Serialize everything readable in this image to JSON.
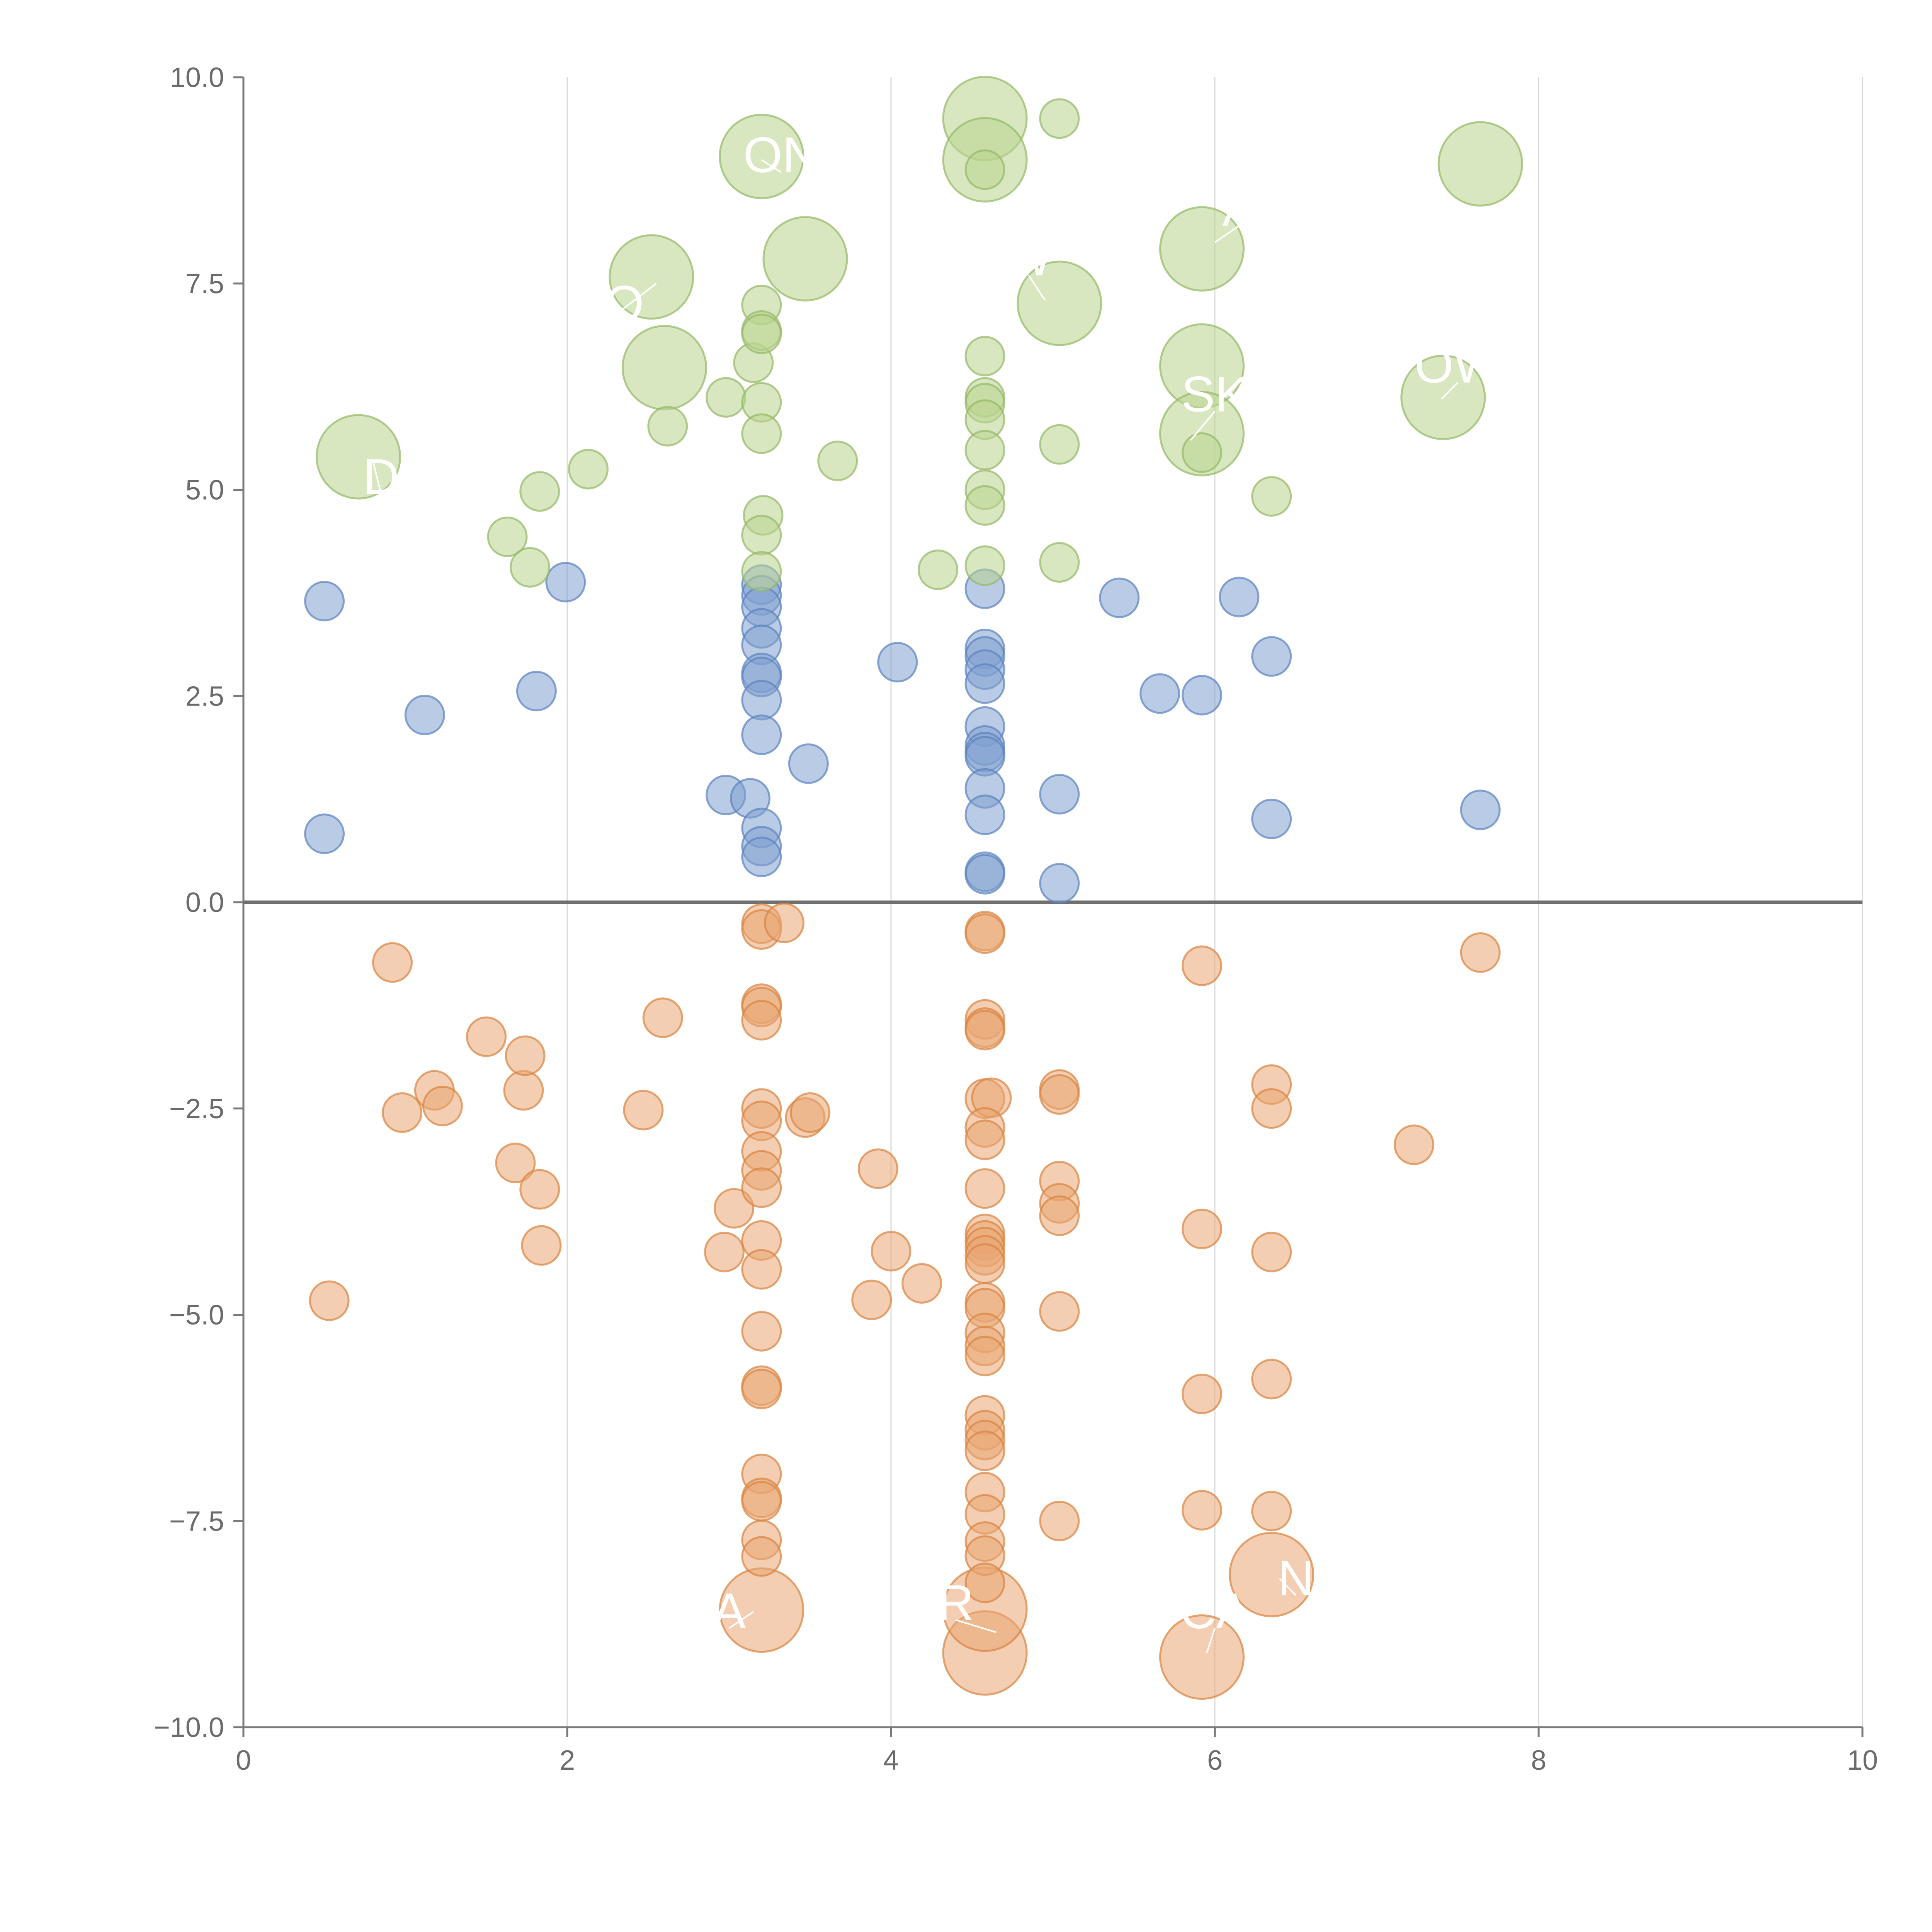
{
  "chart_data": {
    "type": "scatter",
    "title": "",
    "xlabel": "",
    "ylabel": "",
    "xlim": [
      0,
      10
    ],
    "ylim": [
      -10,
      10
    ],
    "grid": "vertical",
    "legend": "none",
    "colors": {
      "blue": "#7fa0d0",
      "blue_edge": "#5b82bf",
      "green": "#b9d38e",
      "green_edge": "#93b865",
      "orange": "#eaa672",
      "orange_edge": "#d9833f",
      "axis": "#7a7a7a",
      "grid": "#d9d9d9",
      "zero_line": "#707070"
    },
    "x_ticks": [
      {
        "value": 0,
        "label": "0"
      },
      {
        "value": 2,
        "label": "2"
      },
      {
        "value": 4,
        "label": "4"
      },
      {
        "value": 6,
        "label": "6"
      },
      {
        "value": 8,
        "label": "8"
      },
      {
        "value": 10,
        "label": "10"
      }
    ],
    "y_ticks": [
      {
        "value": 10,
        "label": "10.0"
      },
      {
        "value": 7.5,
        "label": "7.5"
      },
      {
        "value": 5,
        "label": "5.0"
      },
      {
        "value": 2.5,
        "label": "2.5"
      },
      {
        "value": 0,
        "label": "0.0"
      },
      {
        "value": -2.5,
        "label": "−2.5"
      },
      {
        "value": -5,
        "label": "−5.0"
      },
      {
        "value": -7.5,
        "label": "−7.5"
      },
      {
        "value": -10,
        "label": "−10.0"
      }
    ],
    "series": [
      {
        "name": "blue",
        "color": "blue",
        "points": [
          [
            0.5,
            3.65,
            1
          ],
          [
            0.5,
            0.83,
            1
          ],
          [
            1.12,
            2.27,
            1
          ],
          [
            1.81,
            2.56,
            1
          ],
          [
            1.99,
            3.88,
            1
          ],
          [
            2.98,
            1.3,
            1
          ],
          [
            3.13,
            1.26,
            1
          ],
          [
            3.2,
            3.85,
            1
          ],
          [
            3.2,
            3.72,
            1
          ],
          [
            3.2,
            3.58,
            1
          ],
          [
            3.2,
            3.32,
            1
          ],
          [
            3.2,
            3.12,
            1
          ],
          [
            3.2,
            2.78,
            1
          ],
          [
            3.2,
            2.73,
            1
          ],
          [
            3.2,
            2.45,
            1
          ],
          [
            3.2,
            2.03,
            1
          ],
          [
            3.2,
            0.9,
            1
          ],
          [
            3.2,
            0.68,
            1
          ],
          [
            3.2,
            0.55,
            1
          ],
          [
            3.49,
            1.68,
            1
          ],
          [
            4.04,
            2.91,
            1
          ],
          [
            4.58,
            3.8,
            1
          ],
          [
            4.58,
            3.07,
            1
          ],
          [
            4.58,
            2.98,
            1
          ],
          [
            4.58,
            2.82,
            1
          ],
          [
            4.58,
            2.65,
            1
          ],
          [
            4.58,
            2.13,
            1
          ],
          [
            4.58,
            1.9,
            1
          ],
          [
            4.58,
            1.82,
            1
          ],
          [
            4.58,
            1.77,
            1
          ],
          [
            4.58,
            1.38,
            1
          ],
          [
            4.58,
            1.06,
            1
          ],
          [
            4.58,
            0.37,
            1
          ],
          [
            4.58,
            0.34,
            1
          ],
          [
            5.04,
            1.31,
            1
          ],
          [
            5.04,
            0.23,
            1
          ],
          [
            5.41,
            3.69,
            1
          ],
          [
            5.66,
            2.53,
            1
          ],
          [
            5.92,
            2.51,
            1
          ],
          [
            6.15,
            3.7,
            1
          ],
          [
            6.35,
            2.98,
            1
          ],
          [
            6.35,
            1.01,
            1
          ],
          [
            7.64,
            1.12,
            1
          ]
        ]
      },
      {
        "name": "green",
        "color": "green",
        "points": [
          [
            0.71,
            5.4,
            3
          ],
          [
            1.63,
            4.43,
            1
          ],
          [
            1.77,
            4.06,
            1
          ],
          [
            1.83,
            4.98,
            1
          ],
          [
            2.13,
            5.25,
            1
          ],
          [
            2.52,
            7.58,
            3
          ],
          [
            2.6,
            6.48,
            3
          ],
          [
            2.62,
            5.77,
            1
          ],
          [
            2.98,
            6.12,
            1
          ],
          [
            3.15,
            6.54,
            1
          ],
          [
            3.2,
            9.04,
            3
          ],
          [
            3.2,
            7.24,
            1
          ],
          [
            3.2,
            6.93,
            1
          ],
          [
            3.2,
            6.89,
            1
          ],
          [
            3.2,
            6.06,
            1
          ],
          [
            3.2,
            5.68,
            1
          ],
          [
            3.21,
            4.69,
            1
          ],
          [
            3.2,
            4.45,
            1
          ],
          [
            3.2,
            4.01,
            1
          ],
          [
            3.47,
            7.8,
            3
          ],
          [
            3.67,
            5.35,
            1
          ],
          [
            4.29,
            4.03,
            1
          ],
          [
            4.58,
            9.5,
            3
          ],
          [
            4.58,
            9.0,
            3
          ],
          [
            4.58,
            8.88,
            1
          ],
          [
            4.58,
            6.62,
            1
          ],
          [
            4.58,
            6.12,
            1
          ],
          [
            4.58,
            6.05,
            1
          ],
          [
            4.58,
            5.85,
            1
          ],
          [
            4.58,
            5.48,
            1
          ],
          [
            4.58,
            5.0,
            1
          ],
          [
            4.58,
            4.81,
            1
          ],
          [
            4.58,
            4.08,
            1
          ],
          [
            5.04,
            9.5,
            1
          ],
          [
            5.04,
            7.26,
            3
          ],
          [
            5.04,
            5.55,
            1
          ],
          [
            5.04,
            4.12,
            1
          ],
          [
            5.92,
            7.92,
            3
          ],
          [
            5.92,
            6.5,
            3
          ],
          [
            5.92,
            5.68,
            3
          ],
          [
            5.92,
            5.45,
            1
          ],
          [
            6.35,
            4.92,
            1
          ],
          [
            7.41,
            6.12,
            3
          ],
          [
            7.64,
            8.95,
            3
          ]
        ]
      },
      {
        "name": "orange",
        "color": "orange",
        "points": [
          [
            0.53,
            -4.83,
            1
          ],
          [
            0.92,
            -0.73,
            1
          ],
          [
            0.98,
            -2.55,
            1
          ],
          [
            1.18,
            -2.28,
            1
          ],
          [
            1.23,
            -2.47,
            1
          ],
          [
            1.5,
            -1.63,
            1
          ],
          [
            1.68,
            -3.16,
            1
          ],
          [
            1.73,
            -2.28,
            1
          ],
          [
            1.74,
            -1.86,
            1
          ],
          [
            1.83,
            -3.48,
            1
          ],
          [
            1.84,
            -4.16,
            1
          ],
          [
            2.47,
            -2.52,
            1
          ],
          [
            2.59,
            -1.4,
            1
          ],
          [
            2.97,
            -4.24,
            1
          ],
          [
            3.03,
            -3.71,
            1
          ],
          [
            3.2,
            -8.58,
            3
          ],
          [
            3.2,
            -0.26,
            1
          ],
          [
            3.2,
            -0.33,
            1
          ],
          [
            3.34,
            -0.25,
            1
          ],
          [
            3.2,
            -1.23,
            1
          ],
          [
            3.2,
            -1.27,
            1
          ],
          [
            3.2,
            -1.43,
            1
          ],
          [
            3.2,
            -2.5,
            1
          ],
          [
            3.2,
            -2.65,
            1
          ],
          [
            3.2,
            -3.02,
            1
          ],
          [
            3.2,
            -3.25,
            1
          ],
          [
            3.2,
            -3.46,
            1
          ],
          [
            3.2,
            -4.1,
            1
          ],
          [
            3.2,
            -4.45,
            1
          ],
          [
            3.2,
            -5.2,
            1
          ],
          [
            3.2,
            -5.86,
            1
          ],
          [
            3.2,
            -5.9,
            1
          ],
          [
            3.2,
            -6.93,
            1
          ],
          [
            3.2,
            -7.22,
            1
          ],
          [
            3.2,
            -7.26,
            1
          ],
          [
            3.2,
            -7.73,
            1
          ],
          [
            3.2,
            -7.93,
            1
          ],
          [
            3.47,
            -2.61,
            1
          ],
          [
            3.5,
            -2.55,
            1
          ],
          [
            3.88,
            -4.82,
            1
          ],
          [
            3.92,
            -3.23,
            1
          ],
          [
            4.0,
            -4.23,
            1
          ],
          [
            4.19,
            -4.62,
            1
          ],
          [
            4.58,
            -9.1,
            3
          ],
          [
            4.58,
            -8.57,
            3
          ],
          [
            4.58,
            -0.35,
            1
          ],
          [
            4.58,
            -0.38,
            1
          ],
          [
            4.58,
            -1.42,
            1
          ],
          [
            4.58,
            -1.52,
            1
          ],
          [
            4.58,
            -1.55,
            1
          ],
          [
            4.58,
            -2.38,
            1
          ],
          [
            4.62,
            -2.37,
            1
          ],
          [
            4.58,
            -2.73,
            1
          ],
          [
            4.58,
            -2.88,
            1
          ],
          [
            4.58,
            -3.47,
            1
          ],
          [
            4.58,
            -4.02,
            1
          ],
          [
            4.58,
            -4.1,
            1
          ],
          [
            4.58,
            -4.18,
            1
          ],
          [
            4.58,
            -4.28,
            1
          ],
          [
            4.58,
            -4.38,
            1
          ],
          [
            4.58,
            -4.85,
            1
          ],
          [
            4.58,
            -4.92,
            1
          ],
          [
            4.58,
            -5.22,
            1
          ],
          [
            4.58,
            -5.38,
            1
          ],
          [
            4.58,
            -5.5,
            1
          ],
          [
            4.58,
            -6.22,
            1
          ],
          [
            4.58,
            -6.4,
            1
          ],
          [
            4.58,
            -6.52,
            1
          ],
          [
            4.58,
            -6.65,
            1
          ],
          [
            4.58,
            -7.15,
            1
          ],
          [
            4.58,
            -7.42,
            1
          ],
          [
            4.58,
            -7.75,
            1
          ],
          [
            4.58,
            -7.92,
            1
          ],
          [
            4.58,
            -8.25,
            1
          ],
          [
            5.04,
            -2.27,
            1
          ],
          [
            5.04,
            -2.33,
            1
          ],
          [
            5.04,
            -3.38,
            1
          ],
          [
            5.04,
            -3.65,
            1
          ],
          [
            5.04,
            -3.8,
            1
          ],
          [
            5.04,
            -4.96,
            1
          ],
          [
            5.04,
            -7.5,
            1
          ],
          [
            5.92,
            -0.77,
            1
          ],
          [
            5.92,
            -3.96,
            1
          ],
          [
            5.92,
            -5.96,
            1
          ],
          [
            5.92,
            -7.37,
            1
          ],
          [
            5.92,
            -9.15,
            3
          ],
          [
            6.35,
            -2.21,
            1
          ],
          [
            6.35,
            -2.5,
            1
          ],
          [
            6.35,
            -4.24,
            1
          ],
          [
            6.35,
            -5.78,
            1
          ],
          [
            6.35,
            -7.38,
            1
          ],
          [
            6.35,
            -8.15,
            3
          ],
          [
            7.23,
            -2.94,
            1
          ],
          [
            7.64,
            -0.61,
            1
          ]
        ]
      }
    ],
    "annotations": [
      {
        "text": "ON",
        "x": 3.32,
        "y": 8.85,
        "ax": 3.2,
        "ay": 9.0
      },
      {
        "text": "VO",
        "x": 2.25,
        "y": 7.05,
        "ax": 2.55,
        "ay": 7.5
      },
      {
        "text": "W",
        "x": 4.85,
        "y": 7.6,
        "ax": 4.95,
        "ay": 7.3
      },
      {
        "text": "A",
        "x": 6.15,
        "y": 8.2,
        "ax": 6.0,
        "ay": 8.0
      },
      {
        "text": "OW",
        "x": 7.5,
        "y": 6.3,
        "ax": 7.4,
        "ay": 6.1
      },
      {
        "text": "SK",
        "x": 6.0,
        "y": 5.95,
        "ax": 5.85,
        "ay": 5.6
      },
      {
        "text": "D",
        "x": 0.85,
        "y": 4.95,
        "ax": 0.8,
        "ay": 5.35
      },
      {
        "text": "A",
        "x": 3.0,
        "y": -8.8,
        "ax": 3.15,
        "ay": -8.6
      },
      {
        "text": "R",
        "x": 4.4,
        "y": -8.7,
        "ax": 4.65,
        "ay": -8.85
      },
      {
        "text": "CA",
        "x": 6.0,
        "y": -8.8,
        "ax": 5.95,
        "ay": -9.1
      },
      {
        "text": "N",
        "x": 6.5,
        "y": -8.4,
        "ax": 6.4,
        "ay": -8.2
      }
    ]
  }
}
